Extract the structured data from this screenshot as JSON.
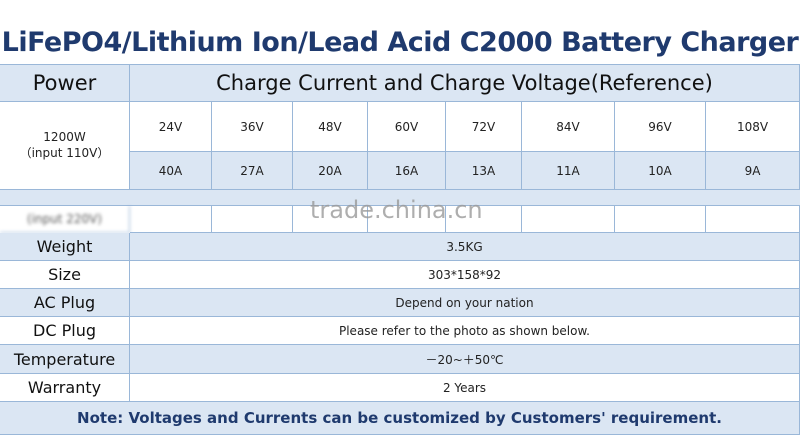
{
  "title": "LiFePO4/Lithium Ion/Lead Acid C2000 Battery Charger",
  "header": {
    "power": "Power",
    "charge": "Charge Current and Charge Voltage(Reference)"
  },
  "power_row": {
    "power": "1200W",
    "input": "（input 110V）",
    "voltages": [
      "24V",
      "36V",
      "48V",
      "60V",
      "72V",
      "84V",
      "96V",
      "108V"
    ],
    "currents": [
      "40A",
      "27A",
      "20A",
      "16A",
      "13A",
      "11A",
      "10A",
      "9A"
    ]
  },
  "partial_row": {
    "input": "(input 220V)"
  },
  "specs": [
    {
      "label": "Weight",
      "value": "3.5KG"
    },
    {
      "label": "Size",
      "value": "303*158*92"
    },
    {
      "label": "AC Plug",
      "value": "Depend on your nation"
    },
    {
      "label": "DC Plug",
      "value": "Please refer to the photo as shown below."
    },
    {
      "label": "Temperature",
      "value": "－20~＋50℃"
    },
    {
      "label": "Warranty",
      "value": "2 Years"
    }
  ],
  "note": "Note: Voltages and Currents can be customized by Customers' requirement.",
  "watermark": "trade.china.cn"
}
